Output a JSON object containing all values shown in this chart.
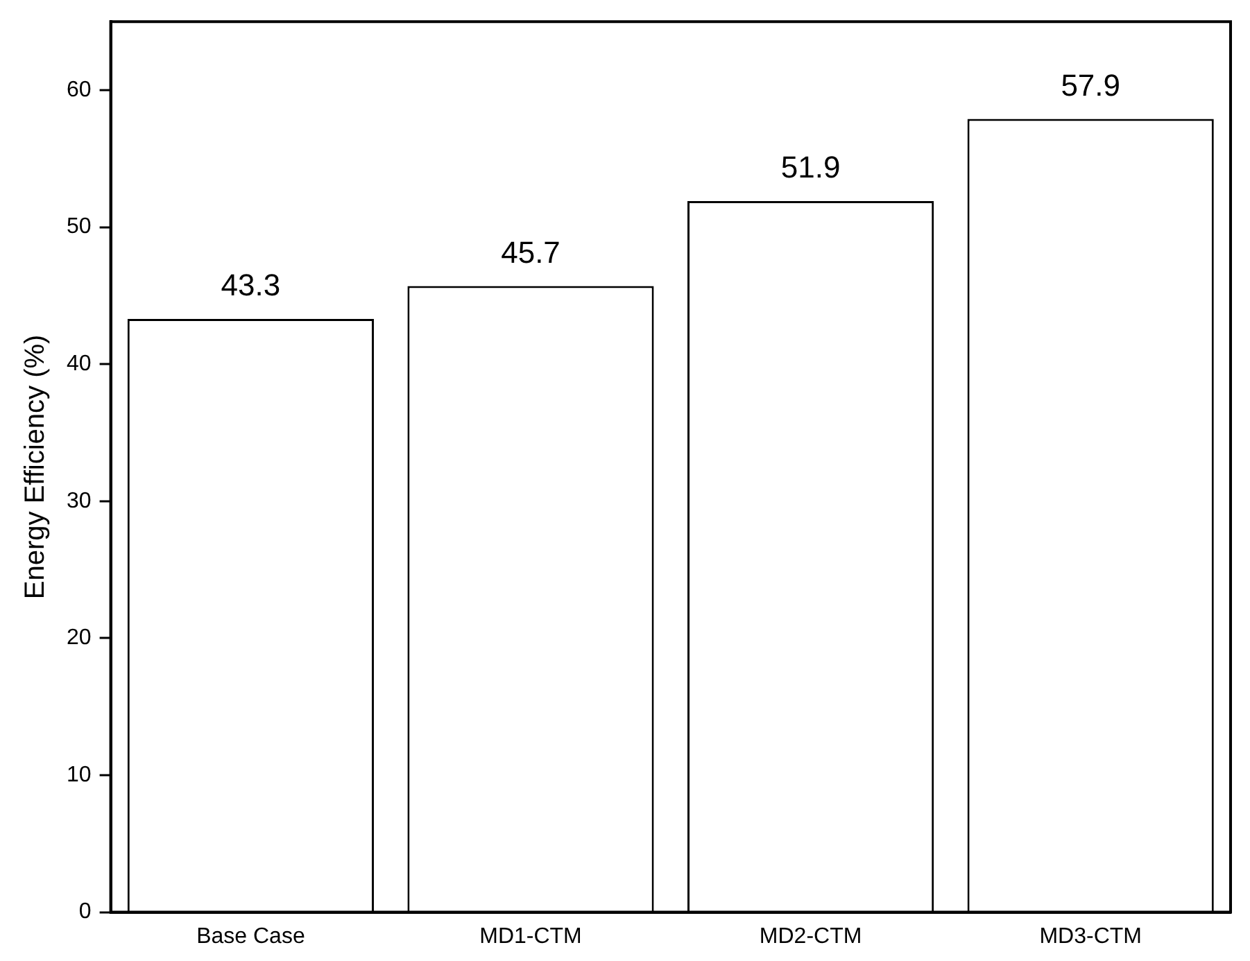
{
  "chart_data": {
    "type": "bar",
    "ylabel": "Energy Efficiency (%)",
    "categories": [
      "Base Case",
      "MD1-CTM",
      "MD2-CTM",
      "MD3-CTM"
    ],
    "values": [
      43.3,
      45.7,
      51.9,
      57.9
    ],
    "color": "#ffffff",
    "ylim": [
      0,
      65
    ],
    "yticks": [
      0,
      10,
      20,
      30,
      40,
      50,
      60
    ],
    "grid": false,
    "legend": false,
    "data_labels": true
  }
}
